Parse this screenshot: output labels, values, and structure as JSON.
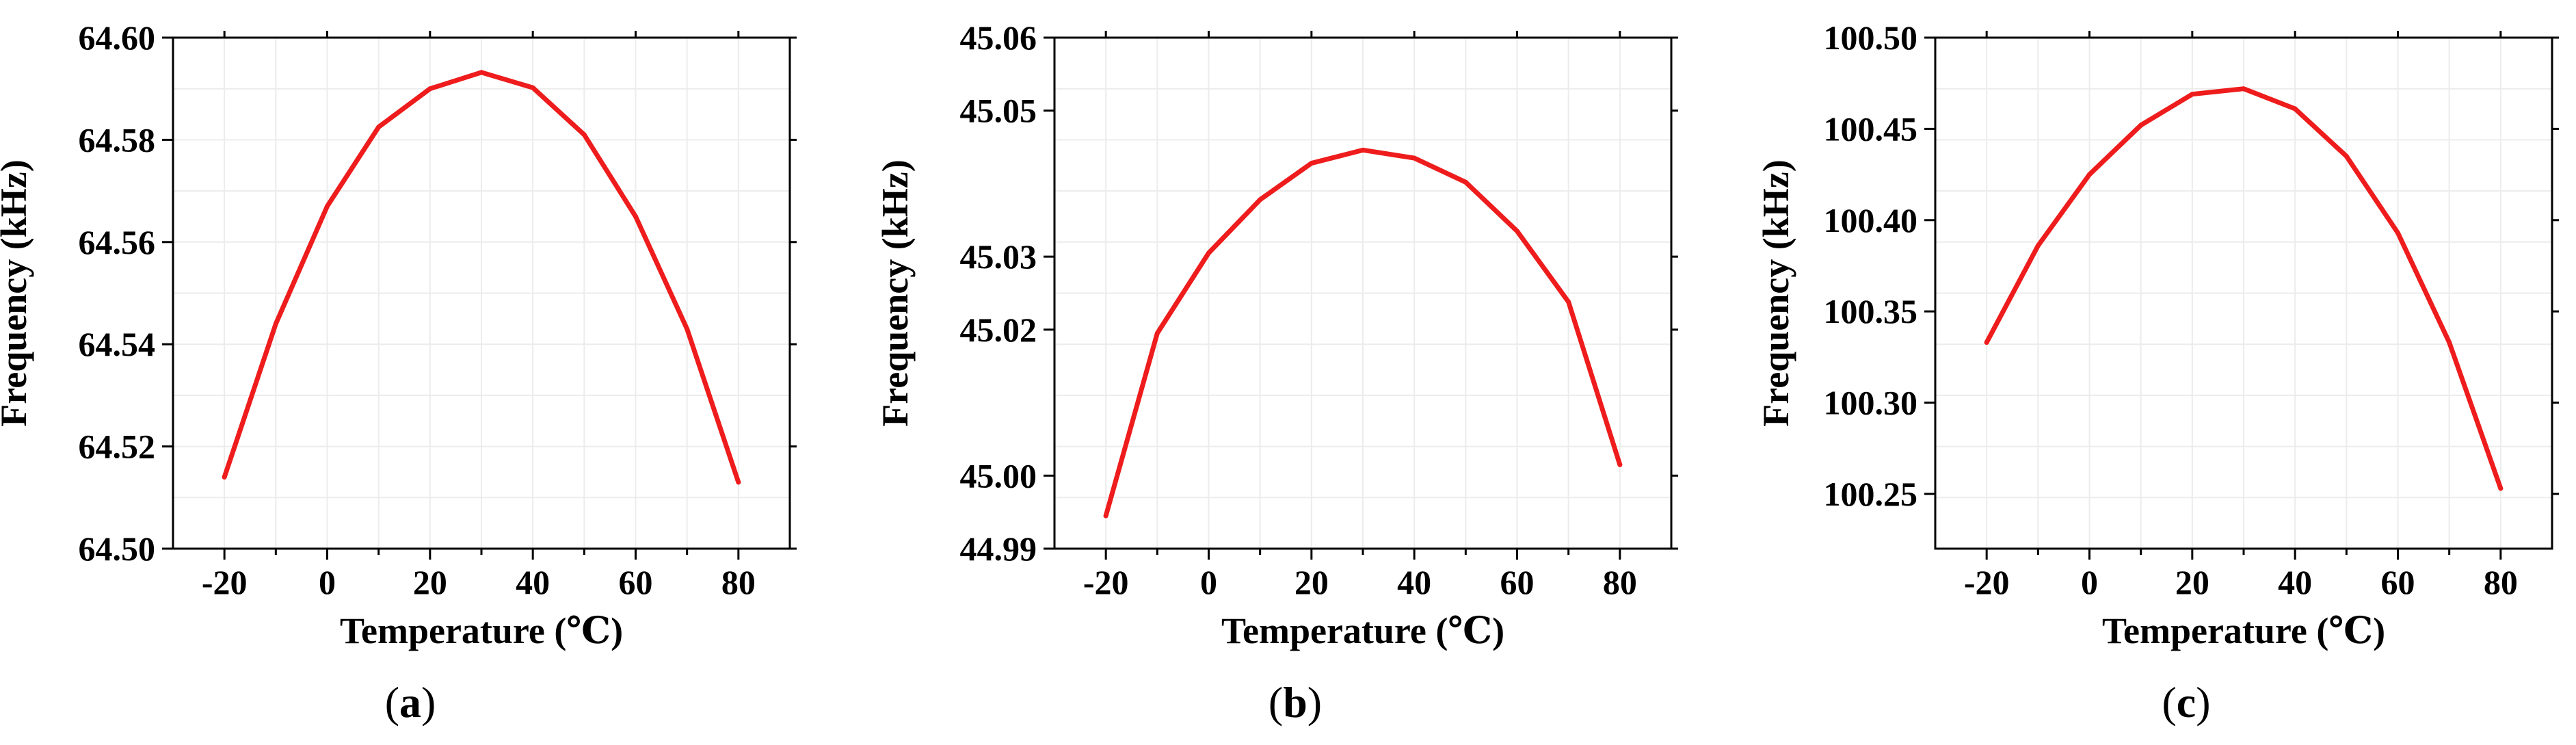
{
  "chart_data": [
    {
      "type": "line",
      "panel_label": "a",
      "xlabel": "Temperature (℃)",
      "ylabel": "Frequency (kHz)",
      "xlim": [
        -30,
        90
      ],
      "ylim": [
        64.5,
        64.6
      ],
      "xticks": [
        -20,
        0,
        20,
        40,
        60,
        80
      ],
      "xtick_labels": [
        "-20",
        "0",
        "20",
        "40",
        "60",
        "80"
      ],
      "yticks": [
        64.5,
        64.52,
        64.54,
        64.56,
        64.58,
        64.6
      ],
      "ytick_labels": [
        "64.50",
        "64.52",
        "64.54",
        "64.56",
        "64.58",
        "64.60"
      ],
      "grid": true,
      "line_color": "#ee1c1c",
      "x": [
        -20,
        -10,
        0,
        10,
        20,
        30,
        40,
        50,
        60,
        70,
        80
      ],
      "y": [
        64.514,
        64.544,
        64.567,
        64.5825,
        64.59,
        64.5932,
        64.5902,
        64.581,
        64.565,
        64.543,
        64.513
      ]
    },
    {
      "type": "line",
      "panel_label": "b",
      "xlabel": "Temperature (℃)",
      "ylabel": "Frequency (kHz)",
      "xlim": [
        -30,
        90
      ],
      "ylim": [
        44.99,
        45.06
      ],
      "xticks": [
        -20,
        0,
        20,
        40,
        60,
        80
      ],
      "xtick_labels": [
        "-20",
        "0",
        "20",
        "40",
        "60",
        "80"
      ],
      "yticks": [
        44.99,
        45.0,
        45.02,
        45.03,
        45.05,
        45.06
      ],
      "ytick_labels": [
        "44.99",
        "45.00",
        "45.02",
        "45.03",
        "45.05",
        "45.06"
      ],
      "grid": true,
      "line_color": "#ee1c1c",
      "x": [
        -20,
        -10,
        0,
        10,
        20,
        30,
        40,
        50,
        60,
        70,
        80
      ],
      "y": [
        44.9945,
        45.0195,
        45.0305,
        45.0378,
        45.0428,
        45.0446,
        45.0435,
        45.0402,
        45.0335,
        45.0238,
        45.0015
      ]
    },
    {
      "type": "line",
      "panel_label": "c",
      "xlabel": "Temperature (℃)",
      "ylabel": "Frequency (kHz)",
      "xlim": [
        -30,
        90
      ],
      "ylim": [
        100.22,
        100.5
      ],
      "xticks": [
        -20,
        0,
        20,
        40,
        60,
        80
      ],
      "xtick_labels": [
        "-20",
        "0",
        "20",
        "40",
        "60",
        "80"
      ],
      "yticks": [
        100.25,
        100.3,
        100.35,
        100.4,
        100.45,
        100.5
      ],
      "ytick_labels": [
        "100.25",
        "100.30",
        "100.35",
        "100.40",
        "100.45",
        "100.50"
      ],
      "grid": true,
      "line_color": "#ee1c1c",
      "x": [
        -20,
        -10,
        0,
        10,
        20,
        30,
        40,
        50,
        60,
        70,
        80
      ],
      "y": [
        100.333,
        100.386,
        100.425,
        100.452,
        100.469,
        100.472,
        100.461,
        100.435,
        100.393,
        100.333,
        100.253
      ]
    }
  ]
}
